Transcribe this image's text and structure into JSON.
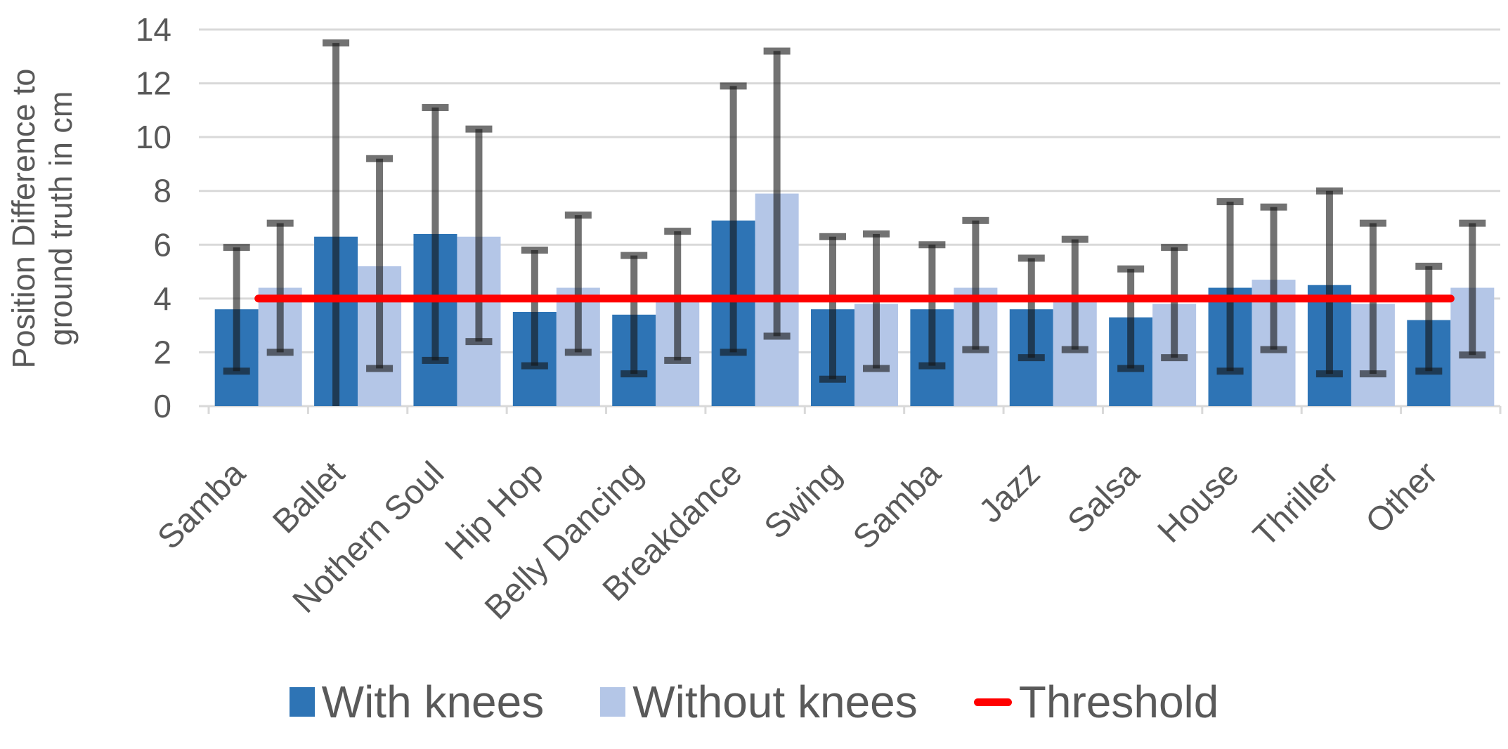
{
  "chart_data": {
    "type": "bar",
    "title": "",
    "ylabel": "Position Difference to ground truth in cm",
    "ylabel_lines": [
      "Position Difference to",
      "ground truth in cm"
    ],
    "xlabel": "",
    "categories": [
      "Samba",
      "Ballet",
      "Nothern Soul",
      "Hip Hop",
      "Belly Dancing",
      "Breakdance",
      "Swing",
      "Samba",
      "Jazz",
      "Salsa",
      "House",
      "Thriller",
      "Other"
    ],
    "series": [
      {
        "name": "With knees",
        "color": "#2E74B5",
        "values": [
          3.6,
          6.3,
          6.4,
          3.5,
          3.4,
          6.9,
          3.6,
          3.6,
          3.6,
          3.3,
          4.4,
          4.5,
          3.2
        ],
        "err_low": [
          1.3,
          0.0,
          1.7,
          1.5,
          1.2,
          2.0,
          1.0,
          1.5,
          1.8,
          1.4,
          1.3,
          1.2,
          1.3
        ],
        "err_high": [
          5.9,
          13.5,
          11.1,
          5.8,
          5.6,
          11.9,
          6.3,
          6.0,
          5.5,
          5.1,
          7.6,
          8.0,
          5.2
        ]
      },
      {
        "name": "Without knees",
        "color": "#B4C6E7",
        "values": [
          4.4,
          5.2,
          6.3,
          4.4,
          3.9,
          7.9,
          3.8,
          4.4,
          4.1,
          3.8,
          4.7,
          3.8,
          4.4
        ],
        "err_low": [
          2.0,
          1.4,
          2.4,
          2.0,
          1.7,
          2.6,
          1.4,
          2.1,
          2.1,
          1.8,
          2.1,
          1.2,
          1.9
        ],
        "err_high": [
          6.8,
          9.2,
          10.3,
          7.1,
          6.5,
          13.2,
          6.4,
          6.9,
          6.2,
          5.9,
          7.4,
          6.8,
          6.8
        ]
      }
    ],
    "threshold": {
      "name": "Threshold",
      "value": 4,
      "color": "#FF0000"
    },
    "yticks": [
      0,
      2,
      4,
      6,
      8,
      10,
      12,
      14
    ],
    "ylim": [
      0,
      14
    ],
    "grid": true,
    "legend_position": "bottom",
    "error_bar_color": "rgba(20,20,20,0.6)",
    "gridline_color": "#D9D9D9",
    "text_color": "#595959"
  }
}
